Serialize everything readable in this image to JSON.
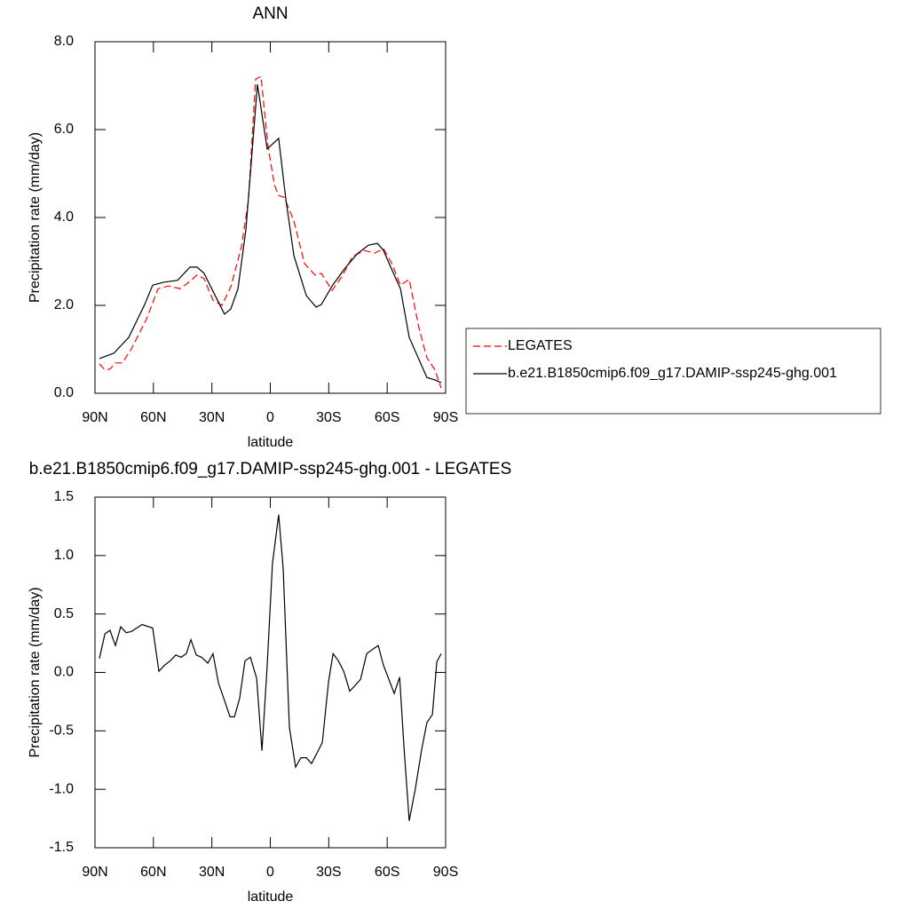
{
  "chart_data": [
    {
      "type": "line",
      "title": "ANN",
      "xlabel": "latitude",
      "ylabel": "Precipitation rate (mm/day)",
      "xlim": [
        90,
        -90
      ],
      "ylim": [
        0,
        8
      ],
      "xticks": [
        {
          "value": 90,
          "label": "90N"
        },
        {
          "value": 60,
          "label": "60N"
        },
        {
          "value": 30,
          "label": "30N"
        },
        0,
        {
          "value": -30,
          "label": "30S"
        },
        {
          "value": -60,
          "label": "60S"
        },
        {
          "value": -90,
          "label": "90S"
        }
      ],
      "yticks": [
        {
          "value": 0,
          "label": "0.0"
        },
        {
          "value": 2,
          "label": "2.0"
        },
        {
          "value": 4,
          "label": "4.0"
        },
        {
          "value": 6,
          "label": "6.0"
        },
        {
          "value": 8,
          "label": "8.0"
        }
      ],
      "legend": "right",
      "series": [
        {
          "name": "LEGATES",
          "color": "#ff0000",
          "dash": "dashed",
          "x": [
            87.7,
            84.9,
            82.3,
            79.5,
            75.9,
            71.3,
            63.6,
            57.6,
            52.2,
            46.2,
            41.2,
            37.6,
            34.0,
            29.4,
            24.8,
            20.3,
            14.8,
            11.2,
            7.5,
            4.8,
            1.1,
            -2.1,
            -4.3,
            -7.1,
            -12.1,
            -17.6,
            -23.0,
            -26.2,
            -31.7,
            -36.7,
            -42.2,
            -48.1,
            -53.6,
            -58.1,
            -62.2,
            -66.8,
            -71.3,
            -76.4,
            -80.4,
            -84.6,
            -87.7
          ],
          "values": [
            0.67,
            0.53,
            0.55,
            0.69,
            0.69,
            1.01,
            1.68,
            2.38,
            2.44,
            2.38,
            2.55,
            2.69,
            2.61,
            2.12,
            2.0,
            2.42,
            3.33,
            4.4,
            7.15,
            7.21,
            5.6,
            4.75,
            4.5,
            4.46,
            3.92,
            2.95,
            2.69,
            2.73,
            2.34,
            2.65,
            3.11,
            3.25,
            3.19,
            3.29,
            2.97,
            2.46,
            2.59,
            1.47,
            0.81,
            0.53,
            0.12
          ]
        },
        {
          "name": "b.e21.B1850cmip6.f09_g17.DAMIP-ssp245-ghg.001",
          "color": "#000000",
          "dash": "solid",
          "x": [
            87.7,
            80.4,
            72.7,
            64.5,
            60.4,
            54.4,
            47.6,
            41.2,
            37.6,
            34.0,
            29.4,
            23.5,
            20.3,
            16.6,
            12.5,
            6.6,
            1.6,
            -4.3,
            -8.0,
            -12.1,
            -18.5,
            -23.5,
            -26.2,
            -31.7,
            -38.1,
            -44.5,
            -50.4,
            -55.0,
            -58.1,
            -62.2,
            -66.8,
            -71.3,
            -80.4,
            -84.6,
            -87.7
          ],
          "values": [
            0.79,
            0.91,
            1.27,
            2.02,
            2.46,
            2.53,
            2.57,
            2.87,
            2.87,
            2.73,
            2.32,
            1.8,
            1.92,
            2.38,
            3.74,
            7.03,
            5.56,
            5.8,
            4.4,
            3.13,
            2.22,
            1.96,
            2.02,
            2.44,
            2.83,
            3.17,
            3.37,
            3.41,
            3.25,
            2.83,
            2.38,
            1.27,
            0.36,
            0.3,
            0.24
          ]
        }
      ]
    },
    {
      "type": "line",
      "title": "b.e21.B1850cmip6.f09_g17.DAMIP-ssp245-ghg.001 - LEGATES",
      "xlabel": "latitude",
      "ylabel": "Precipitation rate (mm/day)",
      "xlim": [
        90,
        -90
      ],
      "ylim": [
        -1.5,
        1.5
      ],
      "xticks": [
        {
          "value": 90,
          "label": "90N"
        },
        {
          "value": 60,
          "label": "60N"
        },
        {
          "value": 30,
          "label": "30N"
        },
        0,
        {
          "value": -30,
          "label": "30S"
        },
        {
          "value": -60,
          "label": "60S"
        },
        {
          "value": -90,
          "label": "90S"
        }
      ],
      "yticks": [
        -1.5,
        {
          "value": -1,
          "label": "-1.0"
        },
        -0.5,
        {
          "value": 0,
          "label": "0.0"
        },
        0.5,
        {
          "value": 1,
          "label": "1.0"
        },
        1.5
      ],
      "series": [
        {
          "color": "#000000",
          "dash": "solid",
          "x": [
            87.7,
            84.9,
            82.3,
            79.5,
            76.8,
            74.0,
            71.3,
            65.8,
            60.4,
            57.2,
            54.4,
            51.3,
            48.5,
            45.8,
            43.1,
            40.8,
            38.0,
            35.3,
            32.1,
            29.4,
            26.6,
            23.5,
            20.7,
            18.4,
            15.7,
            13.0,
            10.2,
            7.0,
            4.3,
            1.6,
            -1.1,
            -4.3,
            -6.6,
            -9.8,
            -13.0,
            -15.7,
            -18.5,
            -21.2,
            -26.7,
            -29.9,
            -32.2,
            -34.9,
            -37.7,
            -40.8,
            -43.6,
            -46.3,
            -49.5,
            -52.7,
            -55.4,
            -58.1,
            -60.9,
            -63.6,
            -66.4,
            -68.6,
            -71.3,
            -74.5,
            -77.7,
            -80.4,
            -83.2,
            -85.5,
            -87.7
          ],
          "values": [
            0.12,
            0.33,
            0.36,
            0.23,
            0.39,
            0.34,
            0.35,
            0.41,
            0.38,
            0.01,
            0.06,
            0.1,
            0.15,
            0.13,
            0.16,
            0.28,
            0.15,
            0.13,
            0.08,
            0.16,
            -0.09,
            -0.24,
            -0.38,
            -0.38,
            -0.22,
            0.1,
            0.13,
            -0.05,
            -0.67,
            0.06,
            0.93,
            1.35,
            0.89,
            -0.47,
            -0.81,
            -0.73,
            -0.73,
            -0.78,
            -0.6,
            -0.08,
            0.16,
            0.1,
            0.01,
            -0.16,
            -0.11,
            -0.06,
            0.16,
            0.2,
            0.23,
            0.06,
            -0.06,
            -0.18,
            -0.04,
            -0.63,
            -1.27,
            -0.99,
            -0.66,
            -0.43,
            -0.36,
            0.09,
            0.16
          ]
        }
      ]
    }
  ]
}
